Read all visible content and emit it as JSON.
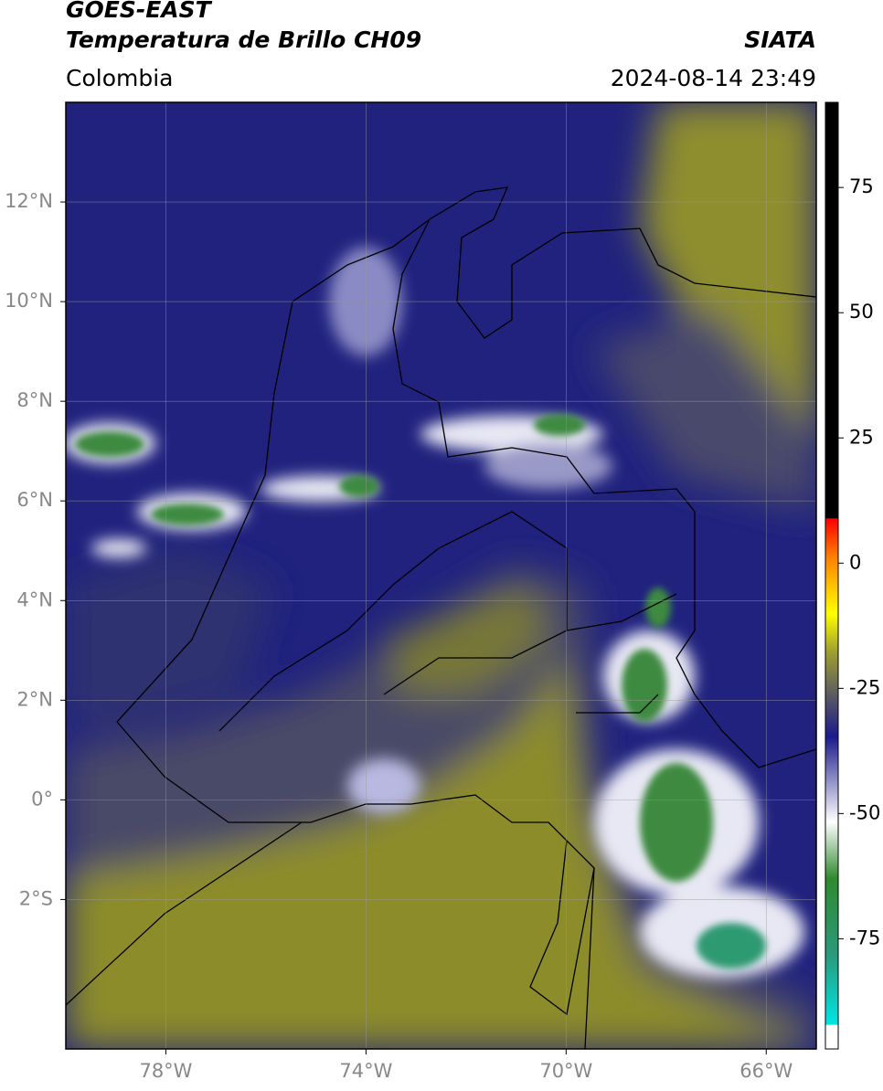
{
  "header": {
    "satellite": "GOES-EAST",
    "product": "Temperatura de Brillo CH09",
    "source": "SIATA",
    "region": "Colombia",
    "datetime": "2024-08-14 23:49"
  },
  "map": {
    "xlim": [
      -80,
      -65
    ],
    "ylim": [
      -5,
      14
    ],
    "xticks": [
      {
        "value": -78,
        "label": "78°W"
      },
      {
        "value": -74,
        "label": "74°W"
      },
      {
        "value": -70,
        "label": "70°W"
      },
      {
        "value": -66,
        "label": "66°W"
      }
    ],
    "yticks": [
      {
        "value": 12,
        "label": "12°N"
      },
      {
        "value": 10,
        "label": "10°N"
      },
      {
        "value": 8,
        "label": "8°N"
      },
      {
        "value": 6,
        "label": "6°N"
      },
      {
        "value": 4,
        "label": "4°N"
      },
      {
        "value": 2,
        "label": "2°N"
      },
      {
        "value": 0,
        "label": "0°"
      },
      {
        "value": -2,
        "label": "2°S"
      }
    ],
    "grid": true
  },
  "colorbar": {
    "lim": [
      -97,
      92
    ],
    "ticks": [
      75,
      50,
      25,
      0,
      -25,
      -50,
      -75
    ]
  }
}
